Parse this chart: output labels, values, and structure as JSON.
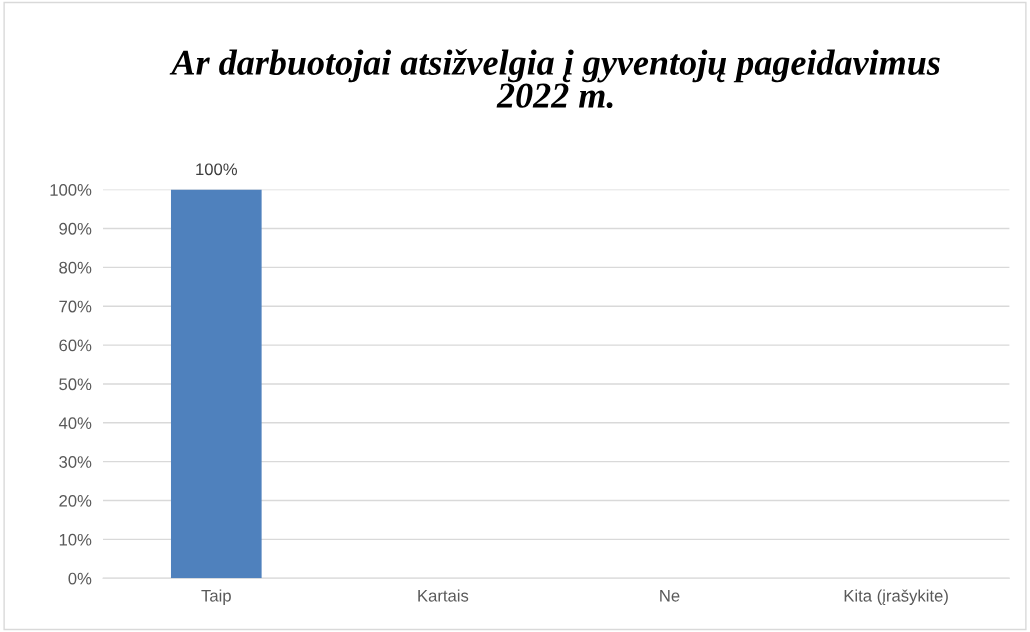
{
  "chart_data": {
    "type": "bar",
    "title": "Ar darbuotojai atsižvelgia į gyventojų pageidavimus\n2022 m.",
    "categories": [
      "Taip",
      "Kartais",
      "Ne",
      "Kita (įrašykite)"
    ],
    "values": [
      100,
      0,
      0,
      0
    ],
    "color": "#4f81bd",
    "value_labels": [
      "100%",
      null,
      null,
      null
    ],
    "ylim": [
      0,
      100
    ],
    "yticks": [
      {
        "value": 0,
        "label": "0%"
      },
      {
        "value": 10,
        "label": "10%"
      },
      {
        "value": 20,
        "label": "20%"
      },
      {
        "value": 30,
        "label": "30%"
      },
      {
        "value": 40,
        "label": "40%"
      },
      {
        "value": 50,
        "label": "50%"
      },
      {
        "value": 60,
        "label": "60%"
      },
      {
        "value": 70,
        "label": "70%"
      },
      {
        "value": 80,
        "label": "80%"
      },
      {
        "value": 90,
        "label": "90%"
      },
      {
        "value": 100,
        "label": "100%"
      }
    ],
    "grid": "y"
  }
}
